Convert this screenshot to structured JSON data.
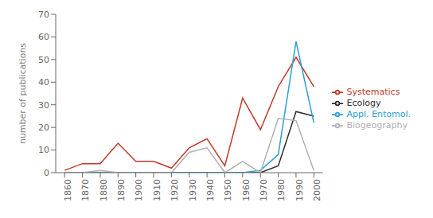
{
  "chart_data": {
    "type": "line",
    "x": [
      1860,
      1870,
      1880,
      1890,
      1900,
      1910,
      1920,
      1930,
      1940,
      1950,
      1960,
      1970,
      1980,
      1990,
      2000
    ],
    "series": [
      {
        "name": "Systematics",
        "color": "#c0392b",
        "values": [
          1,
          4,
          4,
          13,
          5,
          5,
          2,
          11,
          15,
          3,
          33,
          19,
          38,
          51,
          38
        ]
      },
      {
        "name": "Ecology",
        "color": "#2c2c2c",
        "values": [
          0,
          0,
          0,
          0,
          0,
          0,
          0,
          0,
          0,
          0,
          0,
          0,
          3,
          27,
          25
        ]
      },
      {
        "name": "Appl. Entomol.",
        "color": "#29a0d4",
        "values": [
          0,
          0,
          0,
          0,
          0,
          0,
          0,
          0,
          0,
          0,
          0,
          1,
          8,
          58,
          22
        ]
      },
      {
        "name": "Biogeography",
        "color": "#b0b0b0",
        "values": [
          0,
          0,
          1,
          0,
          0,
          0,
          0,
          9,
          11,
          0,
          5,
          0,
          24,
          23,
          1
        ]
      }
    ],
    "ylabel": "number of publications",
    "xlim": [
      1855,
      2005
    ],
    "xticks": [
      1860,
      1870,
      1880,
      1890,
      1900,
      1910,
      1920,
      1930,
      1940,
      1950,
      1960,
      1970,
      1980,
      1990,
      2000
    ],
    "ylim": [
      0,
      70
    ],
    "yticks": [
      0,
      10,
      20,
      30,
      40,
      50,
      60,
      70
    ],
    "grid": false,
    "legend": "right"
  }
}
